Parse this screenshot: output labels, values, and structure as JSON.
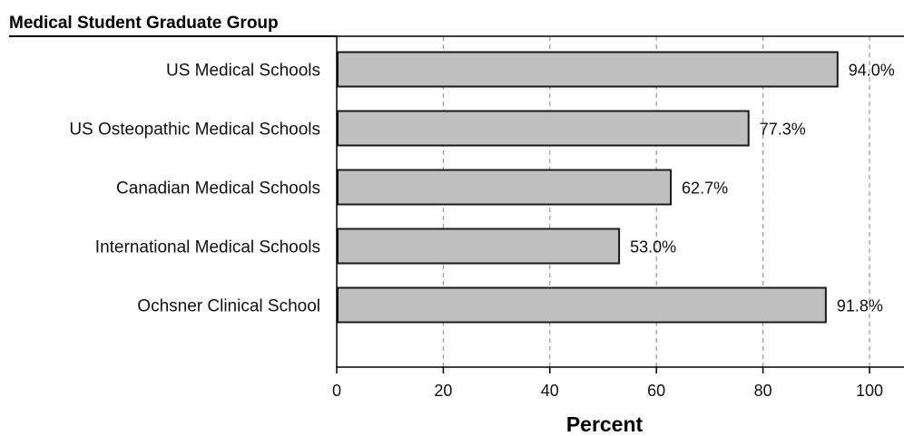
{
  "chart_data": {
    "type": "bar",
    "orientation": "horizontal",
    "header": "Medical Student Graduate Group",
    "xlabel": "Percent",
    "xlim": [
      0,
      100
    ],
    "xticks": [
      "0",
      "20",
      "40",
      "60",
      "80",
      "100"
    ],
    "grid": "vertical dashed",
    "categories": [
      "US Medical Schools",
      "US Osteopathic Medical Schools",
      "Canadian Medical Schools",
      "International Medical Schools",
      "Ochsner Clinical School"
    ],
    "values": [
      94.0,
      77.3,
      62.7,
      53.0,
      91.8
    ],
    "value_labels": [
      "94.0%",
      "77.3%",
      "62.7%",
      "53.0%",
      "91.8%"
    ],
    "colors": {
      "bar_fill": "#c0c0c0",
      "bar_stroke": "#1a1a1a",
      "grid": "#9a9a9a"
    }
  }
}
